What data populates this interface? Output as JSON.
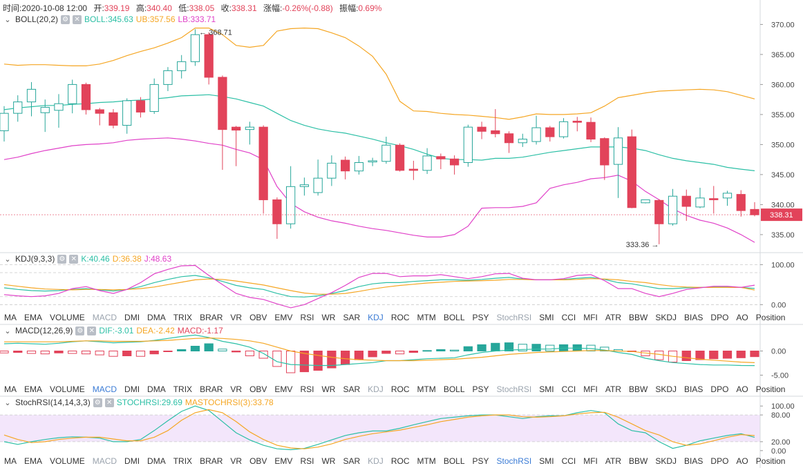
{
  "header": {
    "time_label": "时间:",
    "time": "2020-10-08 12:00",
    "open_label": "开:",
    "open": "339.19",
    "high_label": "高:",
    "high": "340.40",
    "low_label": "低:",
    "low": "338.05",
    "close_label": "收:",
    "close": "338.31",
    "change_label": "涨幅:",
    "change": "-0.26%(-0.88)",
    "amp_label": "振幅:",
    "amp": "0.69%"
  },
  "boll": {
    "name": "BOLL(20,2)",
    "mid": "BOLL:345.63",
    "ub": "UB:357.56",
    "lb": "LB:333.71"
  },
  "kdj": {
    "name": "KDJ(9,3,3)",
    "k": "K:40.46",
    "d": "D:36.38",
    "j": "J:48.63"
  },
  "macd": {
    "name": "MACD(12,26,9)",
    "dif": "DIF:-3.01",
    "dea": "DEA:-2.42",
    "macd": "MACD:-1.17"
  },
  "stochrsi": {
    "name": "StochRSI(14,14,3,3)",
    "k": "STOCHRSI:29.69",
    "d": "MASTOCHRSI(3):33.78"
  },
  "price_tag": "338.31",
  "low_marker": "333.36",
  "high_marker": "368.71",
  "tabs": [
    "MA",
    "EMA",
    "VOLUME",
    "MACD",
    "DMI",
    "DMA",
    "TRIX",
    "BRAR",
    "VR",
    "OBV",
    "EMV",
    "RSI",
    "WR",
    "SAR",
    "KDJ",
    "ROC",
    "MTM",
    "BOLL",
    "PSY",
    "StochRSI",
    "SMI",
    "CCI",
    "MFI",
    "ATR",
    "BBW",
    "SKDJ",
    "BIAS",
    "DPO",
    "AO",
    "Position"
  ],
  "colors": {
    "up": "#26a69a",
    "down": "#e2435a",
    "ub": "#f5a623",
    "mid": "#2bbfa5",
    "lb": "#e040c8",
    "band": "#f3e6fb"
  },
  "chart_data": [
    {
      "type": "candlestick",
      "title": "BOLL(20,2)",
      "ylim": [
        332,
        372
      ],
      "yticks": [
        "335.00",
        "340.00",
        "345.00",
        "350.00",
        "355.00",
        "360.00",
        "365.00",
        "370.00"
      ],
      "candles": [
        [
          352.3,
          355.2,
          356.4,
          350.5
        ],
        [
          355.2,
          357.1,
          358.2,
          353.8
        ],
        [
          357.1,
          359.2,
          360.4,
          354.7
        ],
        [
          355.3,
          356.2,
          357.5,
          352.1
        ],
        [
          355.7,
          356.8,
          358.4,
          352.8
        ],
        [
          356.8,
          360.0,
          360.8,
          355.2
        ],
        [
          360.0,
          355.8,
          360.3,
          355.0
        ],
        [
          355.8,
          355.2,
          356.1,
          353.2
        ],
        [
          355.3,
          353.2,
          355.9,
          352.7
        ],
        [
          353.2,
          357.3,
          357.7,
          351.8
        ],
        [
          357.3,
          355.4,
          357.9,
          354.5
        ],
        [
          355.5,
          360.0,
          361.0,
          355.1
        ],
        [
          360.0,
          362.3,
          362.9,
          358.9
        ],
        [
          362.3,
          363.8,
          364.9,
          361.0
        ],
        [
          363.8,
          368.3,
          369.2,
          363.1
        ],
        [
          368.3,
          361.2,
          368.7,
          360.0
        ],
        [
          361.2,
          352.5,
          361.5,
          345.8
        ],
        [
          352.9,
          352.4,
          353.1,
          346.4
        ],
        [
          352.5,
          352.9,
          353.8,
          350.0
        ],
        [
          352.9,
          340.8,
          353.2,
          338.5
        ],
        [
          340.8,
          336.8,
          341.2,
          334.3
        ],
        [
          336.8,
          343.0,
          346.4,
          336.0
        ],
        [
          343.0,
          343.3,
          344.5,
          341.5
        ],
        [
          342.0,
          344.4,
          347.5,
          341.5
        ],
        [
          344.4,
          346.9,
          348.2,
          343.1
        ],
        [
          347.4,
          345.6,
          348.0,
          344.2
        ],
        [
          345.6,
          347.0,
          348.1,
          345.0
        ],
        [
          347.1,
          347.3,
          347.8,
          346.4
        ],
        [
          347.2,
          349.9,
          351.3,
          346.8
        ],
        [
          349.9,
          345.7,
          350.2,
          345.5
        ],
        [
          345.9,
          345.7,
          347.3,
          344.1
        ],
        [
          345.7,
          348.1,
          349.4,
          345.1
        ],
        [
          348.0,
          347.6,
          348.5,
          345.9
        ],
        [
          347.6,
          346.6,
          348.2,
          345.0
        ],
        [
          347.0,
          352.9,
          353.3,
          346.3
        ],
        [
          352.9,
          352.2,
          353.8,
          350.9
        ],
        [
          352.3,
          351.8,
          355.9,
          351.2
        ],
        [
          351.8,
          350.3,
          352.2,
          348.6
        ],
        [
          350.3,
          350.9,
          351.8,
          349.6
        ],
        [
          350.5,
          352.8,
          354.8,
          350.0
        ],
        [
          352.8,
          351.3,
          353.1,
          350.5
        ],
        [
          351.3,
          353.8,
          354.4,
          351.0
        ],
        [
          353.9,
          353.7,
          354.6,
          352.2
        ],
        [
          353.7,
          350.9,
          354.5,
          350.4
        ],
        [
          351.0,
          346.6,
          351.2,
          344.1
        ],
        [
          346.7,
          351.1,
          352.9,
          341.1
        ],
        [
          351.3,
          339.5,
          352.5,
          339.4
        ],
        [
          340.3,
          340.8,
          340.8,
          340.2
        ],
        [
          340.7,
          336.8,
          340.9,
          333.4
        ],
        [
          336.8,
          341.4,
          342.6,
          336.5
        ],
        [
          341.4,
          339.7,
          342.5,
          337.3
        ],
        [
          339.6,
          341.1,
          342.8,
          339.4
        ],
        [
          341.0,
          340.8,
          343.1,
          338.5
        ],
        [
          341.1,
          341.9,
          342.3,
          339.8
        ],
        [
          341.7,
          339.0,
          342.4,
          338.0
        ],
        [
          339.2,
          338.3,
          340.4,
          338.05
        ]
      ],
      "ub": [
        363.4,
        363.2,
        363.3,
        363.3,
        363.2,
        363.1,
        363.1,
        363.4,
        364.0,
        364.8,
        365.5,
        366.1,
        366.9,
        367.8,
        369.4,
        369.4,
        368.3,
        366.5,
        366.2,
        366.5,
        368.9,
        369.3,
        369.4,
        369.3,
        368.6,
        367.8,
        366.4,
        364.7,
        361.7,
        357.2,
        355.6,
        355.5,
        355.2,
        355.0,
        354.9,
        354.7,
        354.5,
        354.2,
        354.6,
        355.1,
        355.0,
        355.0,
        355.1,
        355.3,
        356.4,
        357.8,
        358.2,
        358.6,
        358.9,
        359.0,
        359.1,
        359.2,
        359.1,
        358.8,
        358.2,
        357.6
      ],
      "mid": [
        355.8,
        356.1,
        356.3,
        356.5,
        356.5,
        356.7,
        356.8,
        357.0,
        357.1,
        357.3,
        357.4,
        357.6,
        357.8,
        358.1,
        358.2,
        358.3,
        358.0,
        357.6,
        357.0,
        356.4,
        355.2,
        354.0,
        353.2,
        352.6,
        352.2,
        351.9,
        351.4,
        350.9,
        350.3,
        349.8,
        349.2,
        348.4,
        347.7,
        347.5,
        347.5,
        347.4,
        347.7,
        347.7,
        347.9,
        348.3,
        348.7,
        349.0,
        349.3,
        349.6,
        349.6,
        349.6,
        349.4,
        349.0,
        348.3,
        347.7,
        347.3,
        347.0,
        346.7,
        346.2,
        345.9,
        345.63
      ],
      "lb": [
        347.5,
        347.9,
        348.5,
        349.0,
        349.4,
        349.8,
        350.0,
        350.1,
        350.3,
        350.7,
        350.9,
        351.0,
        351.1,
        350.9,
        350.6,
        350.2,
        349.9,
        349.2,
        348.6,
        347.5,
        343.0,
        340.2,
        338.8,
        337.9,
        337.3,
        336.9,
        336.4,
        336.0,
        335.7,
        335.3,
        334.9,
        334.6,
        334.6,
        335.0,
        336.4,
        339.4,
        339.5,
        339.5,
        339.7,
        340.3,
        342.7,
        343.3,
        343.7,
        344.3,
        344.5,
        344.9,
        343.9,
        342.2,
        340.8,
        339.3,
        338.2,
        337.4,
        336.9,
        336.1,
        335.0,
        333.71
      ]
    },
    {
      "type": "line",
      "title": "KDJ(9,3,3)",
      "ylim": [
        -15,
        130
      ],
      "yticks": [
        "0.00",
        "100.00"
      ],
      "series": [
        {
          "name": "K",
          "values": [
            42,
            38,
            35,
            34,
            35,
            38,
            40,
            37,
            34,
            38,
            45,
            55,
            63,
            70,
            73,
            67,
            58,
            48,
            42,
            38,
            28,
            20,
            19,
            22,
            28,
            35,
            45,
            52,
            55,
            55,
            58,
            60,
            62,
            62,
            61,
            63,
            66,
            68,
            64,
            62,
            62,
            63,
            66,
            68,
            63,
            55,
            52,
            46,
            40,
            40,
            42,
            43,
            44,
            44,
            43,
            40.46
          ]
        },
        {
          "name": "D",
          "values": [
            50,
            46,
            42,
            39,
            38,
            37,
            38,
            38,
            37,
            38,
            40,
            44,
            50,
            56,
            62,
            64,
            63,
            59,
            54,
            49,
            42,
            35,
            29,
            26,
            26,
            28,
            33,
            39,
            44,
            48,
            51,
            54,
            56,
            58,
            59,
            60,
            61,
            63,
            63,
            62,
            62,
            62,
            63,
            65,
            64,
            62,
            58,
            55,
            50,
            46,
            44,
            43,
            43,
            43,
            43,
            36.38
          ]
        },
        {
          "name": "J",
          "values": [
            25,
            22,
            20,
            22,
            28,
            40,
            45,
            35,
            28,
            38,
            55,
            77,
            88,
            97,
            98,
            73,
            50,
            28,
            18,
            13,
            2,
            -8,
            0,
            15,
            30,
            48,
            68,
            78,
            78,
            70,
            72,
            72,
            75,
            70,
            65,
            70,
            77,
            78,
            66,
            62,
            62,
            65,
            73,
            75,
            60,
            40,
            40,
            28,
            20,
            28,
            38,
            42,
            46,
            46,
            43,
            48.63
          ]
        }
      ]
    },
    {
      "type": "bar+line",
      "title": "MACD(12,26,9)",
      "ylim": [
        -6.5,
        5.5
      ],
      "yticks": [
        "-5.00",
        "0.00"
      ],
      "histogram": [
        -0.4,
        -0.3,
        -0.5,
        -0.6,
        -0.4,
        -0.5,
        -0.6,
        -0.8,
        -1.1,
        -1.0,
        -1.1,
        -0.6,
        -0.1,
        0.3,
        1.0,
        1.5,
        0.4,
        -0.2,
        -1.0,
        -1.5,
        -3.2,
        -4.5,
        -4.3,
        -4.0,
        -3.5,
        -2.8,
        -1.8,
        -1.2,
        -0.5,
        -0.6,
        -0.3,
        0.1,
        0.3,
        0.2,
        0.9,
        1.3,
        1.6,
        1.7,
        1.4,
        1.4,
        1.2,
        1.3,
        1.3,
        1.2,
        0.8,
        0.3,
        -0.1,
        -1.0,
        -1.8,
        -2.3,
        -2.0,
        -1.8,
        -1.6,
        -1.5,
        -1.4,
        -1.17
      ],
      "series": [
        {
          "name": "DIF",
          "values": [
            1.5,
            1.6,
            1.5,
            1.4,
            1.6,
            1.9,
            2.1,
            1.9,
            1.7,
            1.8,
            1.9,
            2.2,
            2.6,
            3.0,
            3.3,
            2.8,
            2.0,
            1.5,
            0.8,
            -0.5,
            -2.2,
            -2.8,
            -2.9,
            -3.0,
            -3.0,
            -2.8,
            -2.6,
            -2.4,
            -2.0,
            -2.0,
            -1.8,
            -1.6,
            -1.5,
            -1.4,
            -0.8,
            -0.3,
            0.0,
            0.2,
            0.3,
            0.4,
            0.4,
            0.6,
            0.6,
            0.5,
            0.2,
            -0.3,
            -0.7,
            -1.5,
            -2.0,
            -2.4,
            -2.6,
            -2.8,
            -2.9,
            -2.9,
            -3.0,
            -3.01
          ]
        },
        {
          "name": "DEA",
          "values": [
            1.9,
            1.9,
            1.9,
            1.9,
            1.9,
            2.0,
            2.1,
            2.1,
            2.0,
            2.0,
            2.0,
            2.1,
            2.2,
            2.4,
            2.6,
            2.7,
            2.6,
            2.4,
            2.1,
            1.6,
            0.8,
            0.0,
            -0.5,
            -0.9,
            -1.3,
            -1.6,
            -1.8,
            -1.9,
            -2.0,
            -2.0,
            -2.0,
            -1.9,
            -1.8,
            -1.7,
            -1.5,
            -1.3,
            -1.0,
            -0.7,
            -0.5,
            -0.3,
            -0.2,
            -0.1,
            0.0,
            0.1,
            0.1,
            0.0,
            -0.1,
            -0.4,
            -0.7,
            -1.1,
            -1.4,
            -1.7,
            -1.9,
            -2.1,
            -2.3,
            -2.42
          ]
        }
      ]
    },
    {
      "type": "line",
      "title": "StochRSI(14,14,3,3)",
      "ylim": [
        -8,
        122
      ],
      "yticks": [
        "0.00",
        "20.00",
        "80.00",
        "100.00"
      ],
      "series": [
        {
          "name": "STOCHRSI",
          "values": [
            20,
            14,
            20,
            25,
            29,
            31,
            30,
            28,
            20,
            20,
            25,
            45,
            67,
            88,
            100,
            90,
            65,
            40,
            24,
            12,
            4,
            2,
            5,
            14,
            24,
            34,
            40,
            44,
            44,
            50,
            58,
            65,
            72,
            75,
            78,
            80,
            80,
            76,
            72,
            76,
            78,
            78,
            85,
            90,
            85,
            60,
            45,
            40,
            20,
            5,
            12,
            22,
            28,
            34,
            38,
            29.69
          ]
        },
        {
          "name": "MASTOCHRSI(3)",
          "values": [
            35,
            25,
            18,
            20,
            25,
            28,
            30,
            30,
            26,
            22,
            22,
            30,
            45,
            68,
            85,
            92,
            85,
            65,
            42,
            25,
            12,
            6,
            4,
            8,
            15,
            25,
            32,
            38,
            42,
            46,
            52,
            58,
            65,
            70,
            75,
            78,
            80,
            80,
            76,
            75,
            76,
            78,
            82,
            85,
            86,
            75,
            60,
            45,
            35,
            20,
            12,
            15,
            22,
            30,
            36,
            33.78
          ]
        }
      ]
    }
  ]
}
